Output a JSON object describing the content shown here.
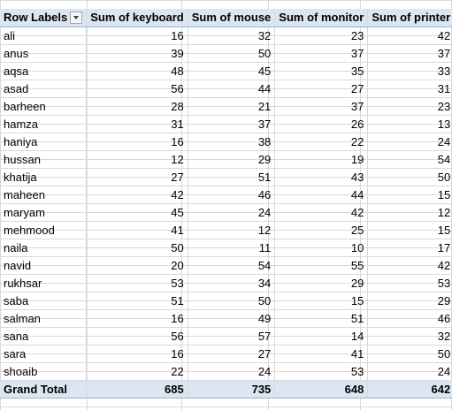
{
  "pivot": {
    "headers": {
      "row_labels": "Row Labels",
      "keyboard": "Sum of keyboard",
      "mouse": "Sum of mouse",
      "monitor": "Sum of monitor",
      "printer": "Sum of printer"
    },
    "filter_icon": "dropdown-filter-icon",
    "rows": [
      {
        "name": "ali",
        "keyboard": 16,
        "mouse": 32,
        "monitor": 23,
        "printer": 42
      },
      {
        "name": "anus",
        "keyboard": 39,
        "mouse": 50,
        "monitor": 37,
        "printer": 37
      },
      {
        "name": "aqsa",
        "keyboard": 48,
        "mouse": 45,
        "monitor": 35,
        "printer": 33
      },
      {
        "name": "asad",
        "keyboard": 56,
        "mouse": 44,
        "monitor": 27,
        "printer": 31
      },
      {
        "name": "barheen",
        "keyboard": 28,
        "mouse": 21,
        "monitor": 37,
        "printer": 23
      },
      {
        "name": "hamza",
        "keyboard": 31,
        "mouse": 37,
        "monitor": 26,
        "printer": 13
      },
      {
        "name": "haniya",
        "keyboard": 16,
        "mouse": 38,
        "monitor": 22,
        "printer": 24
      },
      {
        "name": "hussan",
        "keyboard": 12,
        "mouse": 29,
        "monitor": 19,
        "printer": 54
      },
      {
        "name": "khatija",
        "keyboard": 27,
        "mouse": 51,
        "monitor": 43,
        "printer": 50
      },
      {
        "name": "maheen",
        "keyboard": 42,
        "mouse": 46,
        "monitor": 44,
        "printer": 15
      },
      {
        "name": "maryam",
        "keyboard": 45,
        "mouse": 24,
        "monitor": 42,
        "printer": 12
      },
      {
        "name": "mehmood",
        "keyboard": 41,
        "mouse": 12,
        "monitor": 25,
        "printer": 15
      },
      {
        "name": "naila",
        "keyboard": 50,
        "mouse": 11,
        "monitor": 10,
        "printer": 17
      },
      {
        "name": "navid",
        "keyboard": 20,
        "mouse": 54,
        "monitor": 55,
        "printer": 42
      },
      {
        "name": "rukhsar",
        "keyboard": 53,
        "mouse": 34,
        "monitor": 29,
        "printer": 53
      },
      {
        "name": "saba",
        "keyboard": 51,
        "mouse": 50,
        "monitor": 15,
        "printer": 29
      },
      {
        "name": "salman",
        "keyboard": 16,
        "mouse": 49,
        "monitor": 51,
        "printer": 46
      },
      {
        "name": "sana",
        "keyboard": 56,
        "mouse": 57,
        "monitor": 14,
        "printer": 32
      },
      {
        "name": "sara",
        "keyboard": 16,
        "mouse": 27,
        "monitor": 41,
        "printer": 50
      },
      {
        "name": "shoaib",
        "keyboard": 22,
        "mouse": 24,
        "monitor": 53,
        "printer": 24
      }
    ],
    "grand_total": {
      "label": "Grand Total",
      "keyboard": 685,
      "mouse": 735,
      "monitor": 648,
      "printer": 642
    },
    "colors": {
      "header_fill": "#dce6f1",
      "total_border": "#4f81bd",
      "gridline": "#d9d9d9"
    }
  }
}
